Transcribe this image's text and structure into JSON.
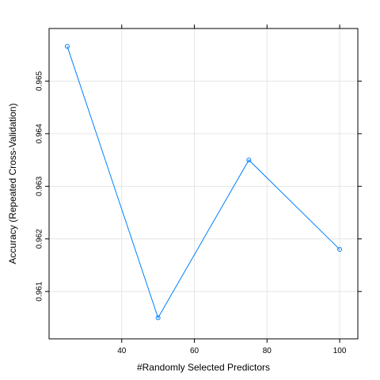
{
  "chart_data": {
    "type": "line",
    "title": "",
    "xlabel": "#Randomly Selected Predictors",
    "ylabel": "Accuracy (Repeated Cross-Validation)",
    "x": [
      25,
      50,
      75,
      100
    ],
    "series": [
      {
        "values": [
          0.96566,
          0.9605,
          0.9635,
          0.9618
        ],
        "color": "#0080ff"
      }
    ],
    "xlim": [
      20,
      105
    ],
    "ylim": [
      0.9601,
      0.966
    ],
    "xticks": [
      40,
      60,
      80,
      100
    ],
    "yticks": [
      0.961,
      0.962,
      0.963,
      0.964,
      0.965
    ],
    "xtick_labels": [
      "40",
      "60",
      "80",
      "100"
    ],
    "ytick_labels": [
      "0.961",
      "0.962",
      "0.963",
      "0.964",
      "0.965"
    ],
    "grid": true,
    "grid_color": "#e6e6e6",
    "legend": "none",
    "marker": "open-circle"
  }
}
